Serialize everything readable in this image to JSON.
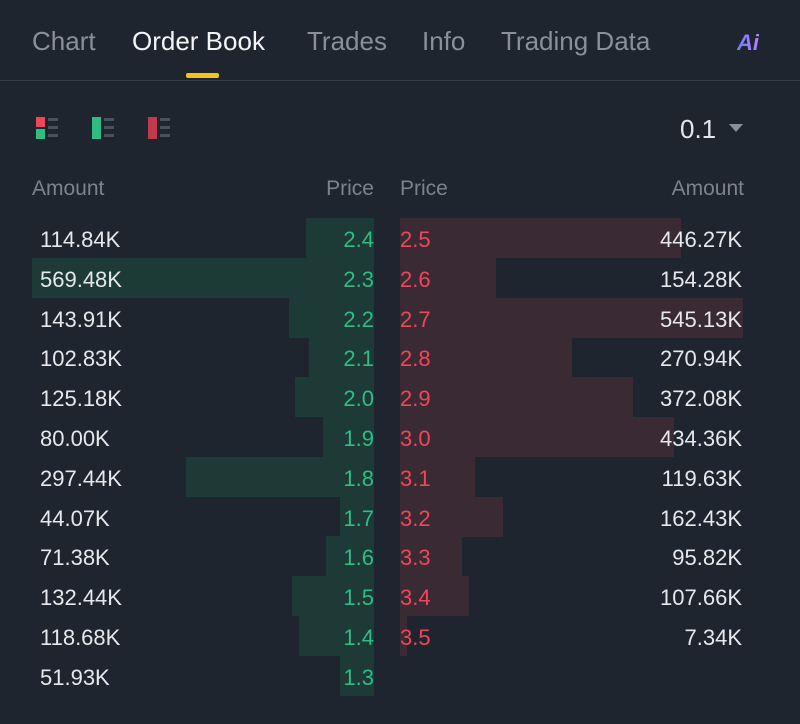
{
  "tabs": [
    {
      "label": "Chart",
      "active": false
    },
    {
      "label": "Order Book",
      "active": true
    },
    {
      "label": "Trades",
      "active": false
    },
    {
      "label": "Info",
      "active": false
    },
    {
      "label": "Trading Data",
      "active": false
    }
  ],
  "ai_icon": {
    "label": "Ai",
    "icon": "ai-icon"
  },
  "view_modes": [
    {
      "name": "both-sides",
      "icon": "orderbook-both-icon"
    },
    {
      "name": "bids-only",
      "icon": "orderbook-bids-icon"
    },
    {
      "name": "asks-only",
      "icon": "orderbook-asks-icon"
    }
  ],
  "precision": {
    "value": "0.1"
  },
  "headers": {
    "bid_amount": "Amount",
    "bid_price": "Price",
    "ask_price": "Price",
    "ask_amount": "Amount"
  },
  "colors": {
    "bid": "#2ebd85",
    "ask": "#f0465b",
    "bid_depth": "#1d3a37",
    "ask_depth": "#3a2a33",
    "accent": "#f0c419"
  },
  "bids": [
    {
      "amount": "114.84K",
      "price": "2.4",
      "depth": 0.2
    },
    {
      "amount": "569.48K",
      "price": "2.3",
      "depth": 1.0
    },
    {
      "amount": "143.91K",
      "price": "2.2",
      "depth": 0.25
    },
    {
      "amount": "102.83K",
      "price": "2.1",
      "depth": 0.19
    },
    {
      "amount": "125.18K",
      "price": "2.0",
      "depth": 0.23
    },
    {
      "amount": "80.00K",
      "price": "1.9",
      "depth": 0.15
    },
    {
      "amount": "297.44K",
      "price": "1.8",
      "depth": 0.55
    },
    {
      "amount": "44.07K",
      "price": "1.7",
      "depth": 0.1
    },
    {
      "amount": "71.38K",
      "price": "1.6",
      "depth": 0.14
    },
    {
      "amount": "132.44K",
      "price": "1.5",
      "depth": 0.24
    },
    {
      "amount": "118.68K",
      "price": "1.4",
      "depth": 0.22
    },
    {
      "amount": "51.93K",
      "price": "1.3",
      "depth": 0.1
    }
  ],
  "asks": [
    {
      "price": "2.5",
      "amount": "446.27K",
      "depth": 0.82
    },
    {
      "price": "2.6",
      "amount": "154.28K",
      "depth": 0.28
    },
    {
      "price": "2.7",
      "amount": "545.13K",
      "depth": 1.0
    },
    {
      "price": "2.8",
      "amount": "270.94K",
      "depth": 0.5
    },
    {
      "price": "2.9",
      "amount": "372.08K",
      "depth": 0.68
    },
    {
      "price": "3.0",
      "amount": "434.36K",
      "depth": 0.8
    },
    {
      "price": "3.1",
      "amount": "119.63K",
      "depth": 0.22
    },
    {
      "price": "3.2",
      "amount": "162.43K",
      "depth": 0.3
    },
    {
      "price": "3.3",
      "amount": "95.82K",
      "depth": 0.18
    },
    {
      "price": "3.4",
      "amount": "107.66K",
      "depth": 0.2
    },
    {
      "price": "3.5",
      "amount": "7.34K",
      "depth": 0.02
    }
  ]
}
